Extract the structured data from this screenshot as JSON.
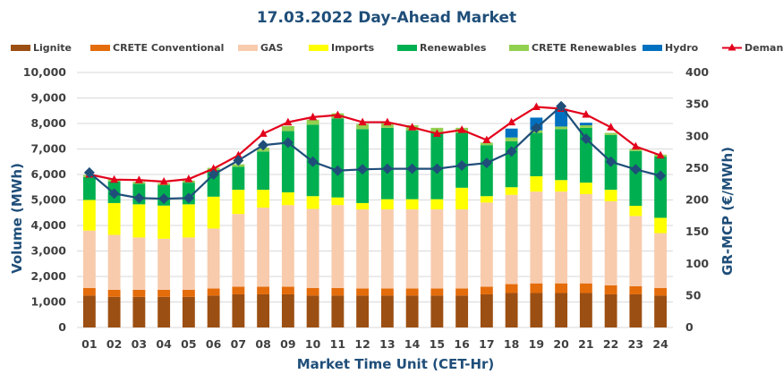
{
  "chart_data": {
    "type": "bar",
    "title": "17.03.2022  Day-Ahead Market",
    "xlabel": "Market Time Unit (CET-Hr)",
    "ylabel": "Volume (MWh)",
    "y2label": "GR-MCP (€/MWh)",
    "ylim": [
      0,
      10000
    ],
    "y2lim": [
      0,
      400
    ],
    "yticks": [
      "0",
      "1,000",
      "2,000",
      "3,000",
      "4,000",
      "5,000",
      "6,000",
      "7,000",
      "8,000",
      "9,000",
      "10,000"
    ],
    "y2ticks": [
      "0",
      "50",
      "100",
      "150",
      "200",
      "250",
      "300",
      "350",
      "400"
    ],
    "categories": [
      "01",
      "02",
      "03",
      "04",
      "05",
      "06",
      "07",
      "08",
      "09",
      "10",
      "11",
      "12",
      "13",
      "14",
      "15",
      "16",
      "17",
      "18",
      "19",
      "20",
      "21",
      "22",
      "23",
      "24"
    ],
    "series": [
      {
        "name": "Lignite",
        "kind": "bar",
        "color": "#9c4f12",
        "values": [
          1250,
          1200,
          1200,
          1200,
          1200,
          1250,
          1300,
          1300,
          1300,
          1250,
          1250,
          1250,
          1250,
          1250,
          1250,
          1250,
          1300,
          1350,
          1350,
          1350,
          1350,
          1300,
          1300,
          1250
        ]
      },
      {
        "name": "CRETE Conventional",
        "kind": "bar",
        "color": "#e46c0a",
        "values": [
          300,
          280,
          280,
          280,
          280,
          280,
          300,
          300,
          300,
          300,
          300,
          280,
          280,
          280,
          280,
          280,
          300,
          350,
          380,
          380,
          380,
          350,
          320,
          300
        ]
      },
      {
        "name": "GAS",
        "kind": "bar",
        "color": "#f8cbad",
        "values": [
          2250,
          2150,
          2050,
          2000,
          2050,
          2350,
          2850,
          3100,
          3200,
          3100,
          3250,
          3100,
          3100,
          3100,
          3100,
          3100,
          3300,
          3500,
          3600,
          3600,
          3500,
          3300,
          2750,
          2150
        ]
      },
      {
        "name": "Imports",
        "kind": "bar",
        "color": "#ffff00",
        "values": [
          1200,
          1250,
          1300,
          1300,
          1300,
          1250,
          950,
          700,
          500,
          500,
          300,
          250,
          400,
          400,
          400,
          850,
          250,
          300,
          600,
          450,
          450,
          450,
          400,
          600
        ]
      },
      {
        "name": "Renewables",
        "kind": "bar",
        "color": "#00b050",
        "values": [
          900,
          850,
          800,
          800,
          850,
          1050,
          900,
          1500,
          2400,
          2800,
          3100,
          2900,
          2800,
          2700,
          2600,
          2150,
          2000,
          1800,
          1700,
          2000,
          2150,
          2150,
          2150,
          2400
        ]
      },
      {
        "name": "CRETE Renewables",
        "kind": "bar",
        "color": "#92d050",
        "values": [
          80,
          80,
          80,
          80,
          80,
          80,
          100,
          150,
          200,
          200,
          200,
          200,
          200,
          200,
          200,
          200,
          100,
          150,
          100,
          100,
          100,
          80,
          80,
          80
        ]
      },
      {
        "name": "Hydro",
        "kind": "bar",
        "color": "#0070c0",
        "values": [
          0,
          0,
          0,
          0,
          0,
          0,
          0,
          0,
          0,
          0,
          0,
          0,
          0,
          0,
          0,
          0,
          0,
          350,
          500,
          700,
          100,
          0,
          0,
          0
        ]
      },
      {
        "name": "Demand",
        "kind": "line",
        "axis": "left",
        "color": "#e3001b",
        "values": [
          6000,
          5800,
          5780,
          5720,
          5820,
          6230,
          6750,
          7600,
          8050,
          8250,
          8330,
          8050,
          8050,
          7850,
          7600,
          7750,
          7350,
          8050,
          8650,
          8580,
          8350,
          7850,
          7100,
          6750
        ]
      },
      {
        "name": "GR-MCP",
        "kind": "line",
        "axis": "right",
        "color": "#1f4e79",
        "values": [
          243,
          210,
          203,
          202,
          203,
          240,
          262,
          286,
          290,
          260,
          246,
          248,
          249,
          249,
          249,
          254,
          258,
          276,
          313,
          347,
          296,
          260,
          248,
          238
        ]
      }
    ],
    "legend_position": "top"
  }
}
